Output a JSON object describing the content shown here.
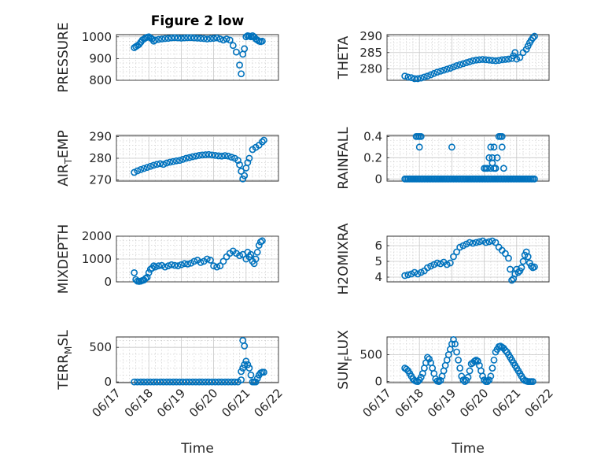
{
  "figure": {
    "title": "Figure 2 low",
    "xlabel": "Time"
  },
  "colors": {
    "marker": "#0072BD",
    "grid": "#c8c8c8",
    "axis": "#262626"
  },
  "chart_data": [
    {
      "id": "pressure",
      "type": "scatter",
      "ylabel": "PRESSURE",
      "ylabel_sub": null,
      "xlim": [
        0,
        5
      ],
      "ylim": [
        800,
        1010
      ],
      "yticks": [
        800,
        900,
        1000
      ],
      "xticks": [
        0,
        1,
        2,
        3,
        4,
        5
      ],
      "xticklabels": [
        "06/17",
        "06/18",
        "06/19",
        "06/20",
        "06/21",
        "06/22"
      ],
      "x": [
        0.55,
        0.6,
        0.65,
        0.7,
        0.75,
        0.8,
        0.85,
        0.9,
        0.95,
        1.0,
        1.05,
        1.1,
        1.15,
        1.2,
        1.3,
        1.4,
        1.5,
        1.6,
        1.7,
        1.8,
        1.9,
        2.0,
        2.1,
        2.2,
        2.3,
        2.4,
        2.5,
        2.6,
        2.7,
        2.8,
        2.9,
        3.0,
        3.1,
        3.2,
        3.3,
        3.4,
        3.5,
        3.6,
        3.7,
        3.8,
        3.85,
        3.9,
        3.95,
        4.0,
        4.05,
        4.1,
        4.15,
        4.2,
        4.25,
        4.3,
        4.35,
        4.4,
        4.45,
        4.5
      ],
      "y": [
        950,
        955,
        960,
        965,
        975,
        985,
        990,
        995,
        998,
        1000,
        995,
        990,
        980,
        985,
        988,
        990,
        992,
        993,
        995,
        996,
        995,
        994,
        995,
        996,
        996,
        995,
        994,
        993,
        992,
        990,
        992,
        993,
        995,
        990,
        985,
        990,
        985,
        960,
        930,
        870,
        830,
        920,
        945,
        1000,
        1005,
        1003,
        1000,
        1005,
        1000,
        990,
        985,
        980,
        978,
        980
      ]
    },
    {
      "id": "theta",
      "type": "scatter",
      "ylabel": "THETA",
      "ylabel_sub": null,
      "xlim": [
        0,
        5
      ],
      "ylim": [
        276.5,
        290.5
      ],
      "yticks": [
        280,
        285,
        290
      ],
      "xticks": [
        0,
        1,
        2,
        3,
        4,
        5
      ],
      "xticklabels": [
        "06/17",
        "06/18",
        "06/19",
        "06/20",
        "06/21",
        "06/22"
      ],
      "x": [
        0.55,
        0.65,
        0.75,
        0.85,
        0.95,
        1.05,
        1.15,
        1.25,
        1.35,
        1.45,
        1.55,
        1.65,
        1.75,
        1.85,
        1.95,
        2.05,
        2.15,
        2.25,
        2.35,
        2.45,
        2.55,
        2.65,
        2.75,
        2.85,
        2.95,
        3.05,
        3.15,
        3.25,
        3.35,
        3.45,
        3.55,
        3.65,
        3.75,
        3.85,
        3.9,
        3.95,
        4.0,
        4.1,
        4.2,
        4.3,
        4.35,
        4.4,
        4.45,
        4.5,
        4.55
      ],
      "y": [
        277.8,
        277.5,
        277.3,
        277.0,
        277.0,
        277.2,
        277.5,
        277.8,
        278.2,
        278.6,
        279.0,
        279.3,
        279.6,
        279.9,
        280.2,
        280.6,
        281.0,
        281.3,
        281.6,
        281.9,
        282.2,
        282.5,
        282.7,
        282.8,
        282.9,
        282.8,
        282.7,
        282.6,
        282.5,
        282.6,
        282.8,
        282.9,
        283.0,
        283.2,
        284.0,
        285.0,
        283.0,
        283.5,
        285.0,
        286.0,
        287.0,
        288.0,
        288.8,
        289.5,
        290.0
      ]
    },
    {
      "id": "air_temp",
      "type": "scatter",
      "ylabel": "AIR",
      "ylabel_sub": "T",
      "ylabel_suffix": "EMP",
      "xlim": [
        0,
        5
      ],
      "ylim": [
        269.5,
        290.5
      ],
      "yticks": [
        270,
        280,
        290
      ],
      "xticks": [
        0,
        1,
        2,
        3,
        4,
        5
      ],
      "xticklabels": [
        "06/17",
        "06/18",
        "06/19",
        "06/20",
        "06/21",
        "06/22"
      ],
      "x": [
        0.55,
        0.65,
        0.75,
        0.85,
        0.95,
        1.05,
        1.15,
        1.25,
        1.35,
        1.45,
        1.55,
        1.65,
        1.75,
        1.85,
        1.95,
        2.05,
        2.15,
        2.25,
        2.35,
        2.45,
        2.55,
        2.65,
        2.75,
        2.85,
        2.95,
        3.05,
        3.15,
        3.25,
        3.35,
        3.45,
        3.55,
        3.65,
        3.75,
        3.8,
        3.85,
        3.9,
        3.95,
        4.0,
        4.05,
        4.1,
        4.2,
        4.3,
        4.4,
        4.5,
        4.55
      ],
      "y": [
        273.5,
        274.2,
        274.8,
        275.3,
        275.8,
        276.3,
        276.8,
        277.2,
        277.5,
        277.2,
        277.8,
        278.2,
        278.5,
        278.8,
        279.0,
        279.5,
        280.0,
        280.3,
        280.7,
        281.0,
        281.3,
        281.5,
        281.6,
        281.7,
        281.5,
        281.3,
        281.1,
        281.0,
        281.2,
        281.0,
        280.5,
        280.0,
        279.0,
        277.0,
        274.0,
        270.5,
        272.0,
        275.5,
        278.0,
        280.0,
        284.0,
        285.0,
        286.0,
        287.5,
        288.3
      ]
    },
    {
      "id": "rainfall",
      "type": "scatter",
      "ylabel": "RAINFALL",
      "ylabel_sub": null,
      "xlim": [
        0,
        5
      ],
      "ylim": [
        -0.02,
        0.41
      ],
      "yticks": [
        0,
        0.2,
        0.4
      ],
      "xticks": [
        0,
        1,
        2,
        3,
        4,
        5
      ],
      "xticklabels": [
        "06/17",
        "06/18",
        "06/19",
        "06/20",
        "06/21",
        "06/22"
      ],
      "x": [
        0.55,
        0.6,
        0.65,
        0.7,
        0.75,
        0.8,
        0.85,
        0.9,
        0.95,
        1.0,
        1.05,
        1.1,
        1.15,
        1.2,
        1.25,
        1.3,
        1.35,
        1.4,
        1.45,
        1.5,
        1.55,
        1.6,
        1.65,
        1.7,
        1.75,
        1.8,
        1.85,
        1.9,
        1.95,
        2.0,
        2.05,
        2.1,
        2.15,
        2.2,
        2.25,
        2.3,
        2.35,
        2.4,
        2.45,
        2.5,
        2.55,
        2.6,
        2.65,
        2.7,
        2.75,
        2.8,
        2.85,
        2.9,
        2.95,
        3.0,
        3.05,
        3.1,
        3.15,
        3.2,
        3.25,
        3.3,
        3.35,
        3.4,
        3.45,
        3.5,
        3.55,
        3.6,
        3.65,
        3.7,
        3.75,
        3.8,
        3.85,
        3.9,
        3.95,
        4.0,
        4.05,
        4.1,
        4.15,
        4.2,
        4.25,
        4.3,
        4.35,
        4.4,
        4.45,
        4.5,
        4.55,
        0.9,
        0.95,
        1.0,
        1.0,
        1.05,
        2.0,
        3.0,
        3.05,
        3.1,
        3.15,
        3.2,
        3.25,
        3.3,
        3.35,
        3.4,
        3.2,
        3.25,
        3.3,
        3.35,
        3.45,
        3.5,
        3.55,
        3.6,
        3.55
      ],
      "y": [
        0,
        0,
        0,
        0,
        0,
        0,
        0,
        0,
        0,
        0,
        0,
        0,
        0,
        0,
        0,
        0,
        0,
        0,
        0,
        0,
        0,
        0,
        0,
        0,
        0,
        0,
        0,
        0,
        0,
        0,
        0,
        0,
        0,
        0,
        0,
        0,
        0,
        0,
        0,
        0,
        0,
        0,
        0,
        0,
        0,
        0,
        0,
        0,
        0,
        0,
        0,
        0,
        0,
        0,
        0,
        0,
        0,
        0,
        0,
        0,
        0,
        0,
        0,
        0,
        0,
        0,
        0,
        0,
        0,
        0,
        0,
        0,
        0,
        0,
        0,
        0,
        0,
        0,
        0,
        0,
        0,
        0.4,
        0.4,
        0.4,
        0.3,
        0.4,
        0.3,
        0.1,
        0.1,
        0.1,
        0.2,
        0.3,
        0.2,
        0.3,
        0.1,
        0.2,
        0.1,
        0.15,
        0.1,
        0.1,
        0.4,
        0.4,
        0.3,
        0.1,
        0.4
      ]
    },
    {
      "id": "mixdepth",
      "type": "scatter",
      "ylabel": "MIXDEPTH",
      "ylabel_sub": null,
      "xlim": [
        0,
        5
      ],
      "ylim": [
        0,
        2000
      ],
      "yticks": [
        0,
        1000,
        2000
      ],
      "xticks": [
        0,
        1,
        2,
        3,
        4,
        5
      ],
      "xticklabels": [
        "06/17",
        "06/18",
        "06/19",
        "06/20",
        "06/21",
        "06/22"
      ],
      "x": [
        0.55,
        0.6,
        0.65,
        0.7,
        0.75,
        0.8,
        0.85,
        0.9,
        0.95,
        1.0,
        1.05,
        1.1,
        1.15,
        1.2,
        1.3,
        1.4,
        1.5,
        1.6,
        1.7,
        1.8,
        1.9,
        2.0,
        2.1,
        2.2,
        2.3,
        2.4,
        2.5,
        2.6,
        2.7,
        2.8,
        2.9,
        3.0,
        3.1,
        3.2,
        3.3,
        3.4,
        3.5,
        3.6,
        3.7,
        3.8,
        3.9,
        4.0,
        4.05,
        4.1,
        4.15,
        4.2,
        4.25,
        4.3,
        4.35,
        4.4,
        4.45,
        4.5
      ],
      "y": [
        400,
        100,
        30,
        20,
        30,
        60,
        80,
        150,
        200,
        400,
        550,
        600,
        700,
        650,
        700,
        720,
        650,
        700,
        750,
        720,
        700,
        750,
        800,
        780,
        820,
        900,
        950,
        850,
        900,
        1000,
        950,
        700,
        650,
        700,
        900,
        1100,
        1250,
        1350,
        1250,
        1150,
        1200,
        1000,
        1300,
        1100,
        1200,
        900,
        800,
        1000,
        1300,
        1600,
        1750,
        1800
      ]
    },
    {
      "id": "h2omixra",
      "type": "scatter",
      "ylabel": "H2OMIXRA",
      "ylabel_sub": null,
      "xlim": [
        0,
        5
      ],
      "ylim": [
        3.7,
        6.6
      ],
      "yticks": [
        4,
        5,
        6
      ],
      "xticks": [
        0,
        1,
        2,
        3,
        4,
        5
      ],
      "xticklabels": [
        "06/17",
        "06/18",
        "06/19",
        "06/20",
        "06/21",
        "06/22"
      ],
      "x": [
        0.55,
        0.65,
        0.75,
        0.85,
        0.95,
        1.05,
        1.15,
        1.25,
        1.35,
        1.45,
        1.55,
        1.65,
        1.75,
        1.85,
        1.95,
        2.05,
        2.15,
        2.25,
        2.35,
        2.45,
        2.55,
        2.65,
        2.75,
        2.85,
        2.95,
        3.05,
        3.15,
        3.25,
        3.35,
        3.45,
        3.55,
        3.65,
        3.75,
        3.8,
        3.85,
        3.9,
        3.95,
        4.0,
        4.05,
        4.1,
        4.15,
        4.2,
        4.25,
        4.3,
        4.35,
        4.4,
        4.45,
        4.5,
        4.55
      ],
      "y": [
        4.1,
        4.15,
        4.2,
        4.3,
        4.2,
        4.3,
        4.4,
        4.6,
        4.7,
        4.8,
        4.9,
        4.85,
        4.95,
        4.8,
        4.9,
        5.3,
        5.6,
        5.9,
        6.0,
        6.1,
        6.2,
        6.15,
        6.2,
        6.25,
        6.3,
        6.2,
        6.25,
        6.3,
        6.2,
        5.9,
        5.7,
        5.5,
        5.2,
        4.5,
        3.8,
        3.9,
        4.2,
        4.5,
        4.3,
        4.4,
        4.6,
        5.0,
        5.4,
        5.6,
        5.3,
        4.9,
        4.7,
        4.6,
        4.65
      ]
    },
    {
      "id": "terr_msl",
      "type": "scatter",
      "ylabel": "TERR",
      "ylabel_sub": "M",
      "ylabel_suffix": "SL",
      "xlim": [
        0,
        5
      ],
      "ylim": [
        -10,
        650
      ],
      "yticks": [
        0,
        500
      ],
      "xticks": [
        0,
        1,
        2,
        3,
        4,
        5
      ],
      "xticklabels": [
        "06/17",
        "06/18",
        "06/19",
        "06/20",
        "06/21",
        "06/22"
      ],
      "x": [
        0.55,
        0.65,
        0.75,
        0.85,
        0.95,
        1.05,
        1.15,
        1.25,
        1.35,
        1.45,
        1.55,
        1.65,
        1.75,
        1.85,
        1.95,
        2.05,
        2.15,
        2.25,
        2.35,
        2.45,
        2.55,
        2.65,
        2.75,
        2.85,
        2.95,
        3.05,
        3.15,
        3.25,
        3.35,
        3.45,
        3.55,
        3.65,
        3.75,
        3.85,
        3.9,
        3.95,
        4.0,
        4.05,
        4.1,
        4.15,
        4.2,
        4.25,
        4.3,
        4.35,
        4.4,
        4.45,
        4.5,
        4.55,
        3.85,
        3.9,
        3.95
      ],
      "y": [
        0,
        0,
        0,
        0,
        0,
        0,
        0,
        0,
        0,
        0,
        0,
        0,
        0,
        0,
        0,
        0,
        0,
        0,
        0,
        0,
        0,
        0,
        0,
        0,
        0,
        0,
        0,
        0,
        0,
        0,
        0,
        0,
        0,
        30,
        600,
        520,
        300,
        250,
        200,
        100,
        0,
        0,
        0,
        50,
        100,
        130,
        140,
        140,
        150,
        200,
        250
      ]
    },
    {
      "id": "sun_flux",
      "type": "scatter",
      "ylabel": "SUN",
      "ylabel_sub": "F",
      "ylabel_suffix": "LUX",
      "xlim": [
        0,
        5
      ],
      "ylim": [
        -20,
        830
      ],
      "yticks": [
        0,
        500
      ],
      "xticks": [
        0,
        1,
        2,
        3,
        4,
        5
      ],
      "xticklabels": [
        "06/17",
        "06/18",
        "06/19",
        "06/20",
        "06/21",
        "06/22"
      ],
      "x": [
        0.55,
        0.6,
        0.65,
        0.7,
        0.75,
        0.8,
        0.85,
        0.9,
        0.95,
        1.0,
        1.05,
        1.1,
        1.15,
        1.2,
        1.25,
        1.3,
        1.35,
        1.4,
        1.45,
        1.5,
        1.55,
        1.6,
        1.65,
        1.7,
        1.75,
        1.8,
        1.85,
        1.9,
        1.95,
        2.0,
        2.05,
        2.1,
        2.15,
        2.2,
        2.25,
        2.3,
        2.35,
        2.4,
        2.45,
        2.5,
        2.55,
        2.6,
        2.65,
        2.7,
        2.75,
        2.8,
        2.85,
        2.9,
        2.95,
        3.0,
        3.05,
        3.1,
        3.15,
        3.2,
        3.25,
        3.3,
        3.35,
        3.4,
        3.45,
        3.5,
        3.55,
        3.6,
        3.65,
        3.7,
        3.75,
        3.8,
        3.85,
        3.9,
        3.95,
        4.0,
        4.05,
        4.1,
        4.15,
        4.2,
        4.25,
        4.3,
        4.35,
        4.4,
        4.45,
        4.5
      ],
      "y": [
        250,
        230,
        200,
        150,
        100,
        50,
        20,
        5,
        0,
        30,
        80,
        150,
        250,
        350,
        450,
        420,
        350,
        250,
        150,
        50,
        10,
        0,
        20,
        100,
        200,
        300,
        400,
        500,
        600,
        700,
        780,
        700,
        550,
        400,
        250,
        100,
        30,
        0,
        20,
        80,
        200,
        330,
        350,
        380,
        400,
        380,
        300,
        200,
        100,
        30,
        0,
        0,
        30,
        100,
        250,
        400,
        550,
        600,
        650,
        660,
        640,
        620,
        580,
        550,
        500,
        450,
        400,
        350,
        300,
        250,
        200,
        150,
        100,
        50,
        20,
        10,
        0,
        0,
        0,
        0
      ]
    }
  ]
}
